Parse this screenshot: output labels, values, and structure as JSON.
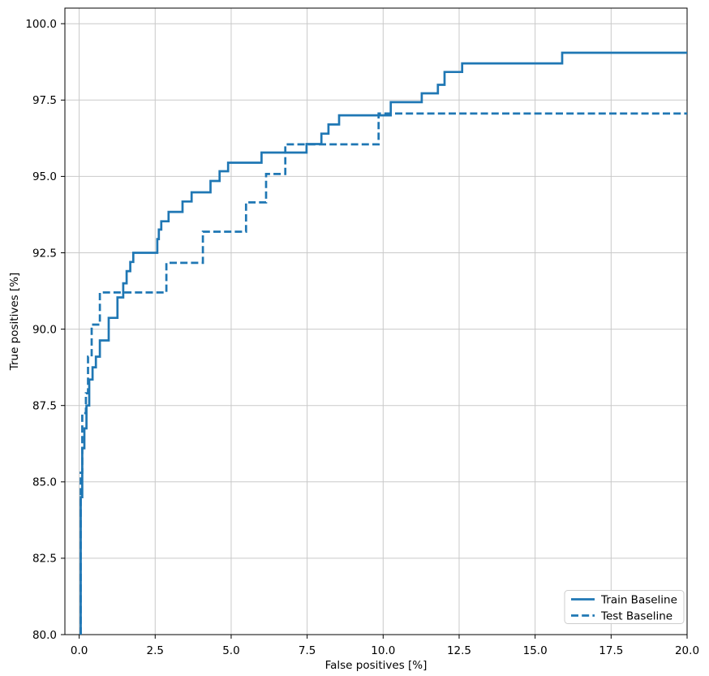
{
  "chart_data": {
    "type": "line",
    "title": "",
    "xlabel": "False positives [%]",
    "ylabel": "True positives [%]",
    "xlim": [
      -0.47,
      20.0
    ],
    "ylim": [
      80.0,
      100.51
    ],
    "grid": true,
    "legend_position": "lower right",
    "line_color": "#1f77b4",
    "xticks": [
      0.0,
      2.5,
      5.0,
      7.5,
      10.0,
      12.5,
      15.0,
      17.5,
      20.0
    ],
    "yticks": [
      80.0,
      82.5,
      85.0,
      87.5,
      90.0,
      92.5,
      95.0,
      97.5,
      100.0
    ],
    "xtick_labels": [
      "0.0",
      "2.5",
      "5.0",
      "7.5",
      "10.0",
      "12.5",
      "15.0",
      "17.5",
      "20.0"
    ],
    "ytick_labels": [
      "80.0",
      "82.5",
      "85.0",
      "87.5",
      "90.0",
      "92.5",
      "95.0",
      "97.5",
      "100.0"
    ],
    "series": [
      {
        "name": "Train Baseline",
        "style": "solid",
        "color": "#1f77b4",
        "points": [
          [
            0.05,
            80.0
          ],
          [
            0.05,
            84.5
          ],
          [
            0.1,
            84.5
          ],
          [
            0.1,
            86.1
          ],
          [
            0.17,
            86.1
          ],
          [
            0.17,
            86.75
          ],
          [
            0.24,
            86.75
          ],
          [
            0.24,
            87.5
          ],
          [
            0.33,
            87.5
          ],
          [
            0.33,
            88.35
          ],
          [
            0.44,
            88.35
          ],
          [
            0.44,
            88.75
          ],
          [
            0.55,
            88.75
          ],
          [
            0.55,
            89.1
          ],
          [
            0.68,
            89.1
          ],
          [
            0.68,
            89.63
          ],
          [
            0.97,
            89.63
          ],
          [
            0.97,
            90.37
          ],
          [
            1.26,
            90.37
          ],
          [
            1.26,
            91.04
          ],
          [
            1.45,
            91.04
          ],
          [
            1.45,
            91.5
          ],
          [
            1.56,
            91.5
          ],
          [
            1.56,
            91.9
          ],
          [
            1.68,
            91.9
          ],
          [
            1.68,
            92.2
          ],
          [
            1.78,
            92.2
          ],
          [
            1.78,
            92.5
          ],
          [
            2.57,
            92.5
          ],
          [
            2.57,
            92.95
          ],
          [
            2.62,
            92.95
          ],
          [
            2.62,
            93.26
          ],
          [
            2.7,
            93.26
          ],
          [
            2.7,
            93.53
          ],
          [
            2.94,
            93.53
          ],
          [
            2.94,
            93.84
          ],
          [
            3.4,
            93.84
          ],
          [
            3.4,
            94.18
          ],
          [
            3.7,
            94.18
          ],
          [
            3.7,
            94.48
          ],
          [
            4.32,
            94.48
          ],
          [
            4.32,
            94.85
          ],
          [
            4.62,
            94.85
          ],
          [
            4.62,
            95.17
          ],
          [
            4.9,
            95.17
          ],
          [
            4.9,
            95.45
          ],
          [
            6.0,
            95.45
          ],
          [
            6.0,
            95.78
          ],
          [
            7.48,
            95.78
          ],
          [
            7.48,
            96.06
          ],
          [
            7.97,
            96.06
          ],
          [
            7.97,
            96.4
          ],
          [
            8.2,
            96.4
          ],
          [
            8.2,
            96.7
          ],
          [
            8.55,
            96.7
          ],
          [
            8.55,
            97.0
          ],
          [
            10.25,
            97.0
          ],
          [
            10.25,
            97.43
          ],
          [
            11.27,
            97.43
          ],
          [
            11.27,
            97.72
          ],
          [
            11.8,
            97.72
          ],
          [
            11.8,
            98.0
          ],
          [
            12.02,
            98.0
          ],
          [
            12.02,
            98.42
          ],
          [
            12.6,
            98.42
          ],
          [
            12.6,
            98.7
          ],
          [
            15.89,
            98.7
          ],
          [
            15.89,
            99.05
          ],
          [
            20.0,
            99.05
          ]
        ]
      },
      {
        "name": "Test Baseline",
        "style": "dashed",
        "color": "#1f77b4",
        "points": [
          [
            0.05,
            80.0
          ],
          [
            0.05,
            85.3
          ],
          [
            0.1,
            85.3
          ],
          [
            0.1,
            87.25
          ],
          [
            0.22,
            87.25
          ],
          [
            0.22,
            87.9
          ],
          [
            0.29,
            87.9
          ],
          [
            0.29,
            89.1
          ],
          [
            0.41,
            89.1
          ],
          [
            0.41,
            90.15
          ],
          [
            0.68,
            90.15
          ],
          [
            0.68,
            91.2
          ],
          [
            2.87,
            91.2
          ],
          [
            2.87,
            92.17
          ],
          [
            4.07,
            92.17
          ],
          [
            4.07,
            93.19
          ],
          [
            5.49,
            93.19
          ],
          [
            5.49,
            94.15
          ],
          [
            6.15,
            94.15
          ],
          [
            6.15,
            95.08
          ],
          [
            6.78,
            95.08
          ],
          [
            6.78,
            96.05
          ],
          [
            9.85,
            96.05
          ],
          [
            9.85,
            97.06
          ],
          [
            20.0,
            97.06
          ]
        ]
      }
    ],
    "legend": {
      "entries": [
        "Train Baseline",
        "Test Baseline"
      ]
    }
  }
}
